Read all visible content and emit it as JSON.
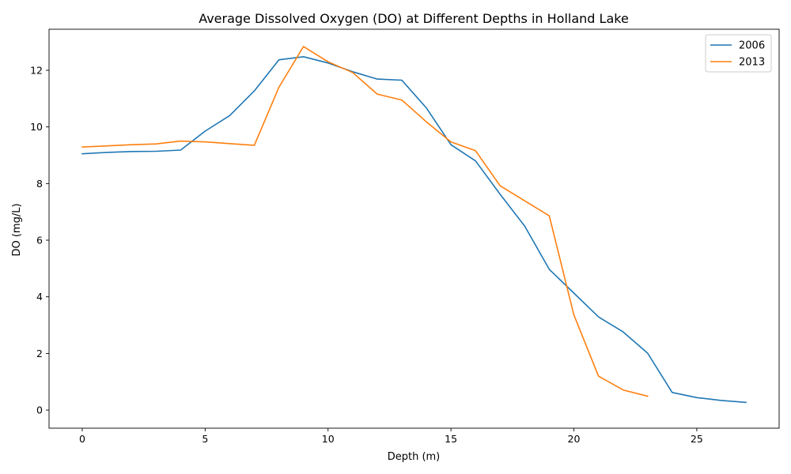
{
  "chart_data": {
    "type": "line",
    "title": "Average Dissolved Oxygen (DO) at Different Depths in Holland Lake",
    "xlabel": "Depth (m)",
    "ylabel": "DO (mg/L)",
    "xlim": [
      -1.35,
      28.35
    ],
    "ylim": [
      -0.64,
      13.45
    ],
    "xticks": [
      0,
      5,
      10,
      15,
      20,
      25
    ],
    "yticks": [
      0,
      2,
      4,
      6,
      8,
      10,
      12
    ],
    "grid": false,
    "legend_position": "top-right",
    "series": [
      {
        "name": "2006",
        "color": "#1f77b4",
        "x": [
          0,
          1,
          2,
          3,
          4,
          5,
          6,
          7,
          8,
          9,
          10,
          11,
          12,
          13,
          14,
          15,
          16,
          17,
          18,
          19,
          20,
          21,
          22,
          23,
          24,
          25,
          26,
          27
        ],
        "y": [
          9.05,
          9.1,
          9.13,
          9.14,
          9.18,
          9.85,
          10.4,
          11.27,
          12.37,
          12.48,
          12.26,
          11.95,
          11.69,
          11.65,
          10.67,
          9.37,
          8.8,
          7.62,
          6.5,
          4.97,
          4.13,
          3.29,
          2.76,
          2.01,
          0.62,
          0.44,
          0.34,
          0.27
        ]
      },
      {
        "name": "2013",
        "color": "#ff7f0e",
        "x": [
          0,
          1,
          2,
          3,
          4,
          5,
          6,
          7,
          8,
          9,
          10,
          11,
          12,
          13,
          14,
          15,
          16,
          17,
          18,
          19,
          20,
          21,
          22,
          23
        ],
        "y": [
          9.29,
          9.33,
          9.37,
          9.4,
          9.5,
          9.47,
          9.41,
          9.35,
          11.4,
          12.84,
          12.3,
          11.92,
          11.16,
          10.95,
          10.18,
          9.47,
          9.16,
          7.92,
          7.39,
          6.86,
          3.36,
          1.2,
          0.71,
          0.49
        ]
      }
    ]
  }
}
